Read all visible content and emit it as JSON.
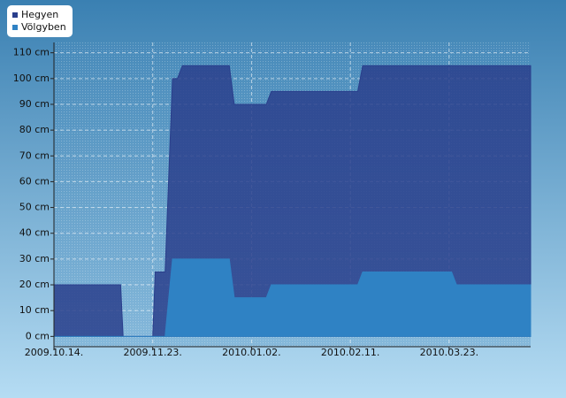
{
  "chart_data": {
    "type": "area",
    "x": [
      "2009-10-14",
      "2009-11-10",
      "2009-11-11",
      "2009-11-23",
      "2009-11-24",
      "2009-11-28",
      "2009-12-01",
      "2009-12-03",
      "2009-12-05",
      "2009-12-24",
      "2009-12-26",
      "2010-01-08",
      "2010-01-10",
      "2010-02-14",
      "2010-02-16",
      "2010-03-24",
      "2010-03-26",
      "2010-04-25"
    ],
    "series": [
      {
        "name": "Hegyen",
        "color": "#2a3f8c",
        "values": [
          20,
          20,
          0,
          0,
          25,
          25,
          100,
          100,
          105,
          105,
          90,
          90,
          95,
          95,
          105,
          105,
          105,
          105
        ]
      },
      {
        "name": "Völgyben",
        "color": "#2f82c4",
        "values": [
          0,
          0,
          0,
          0,
          0,
          0,
          30,
          30,
          30,
          30,
          15,
          15,
          20,
          20,
          25,
          25,
          20,
          20
        ]
      }
    ],
    "xlim": [
      "2009-10-14",
      "2010-04-25"
    ],
    "xticks": [
      {
        "value": "2009-10-14",
        "label": "2009.10.14."
      },
      {
        "value": "2009-11-23",
        "label": "2009.11.23."
      },
      {
        "value": "2010-01-02",
        "label": "2010.01.02."
      },
      {
        "value": "2010-02-11",
        "label": "2010.02.11."
      },
      {
        "value": "2010-03-23",
        "label": "2010.03.23."
      }
    ],
    "ylim": [
      -4,
      114
    ],
    "yticks": [
      {
        "value": 0,
        "label": "0 cm"
      },
      {
        "value": 10,
        "label": "10 cm"
      },
      {
        "value": 20,
        "label": "20 cm"
      },
      {
        "value": 30,
        "label": "30 cm"
      },
      {
        "value": 40,
        "label": "40 cm"
      },
      {
        "value": 50,
        "label": "50 cm"
      },
      {
        "value": 60,
        "label": "60 cm"
      },
      {
        "value": 70,
        "label": "70 cm"
      },
      {
        "value": 80,
        "label": "80 cm"
      },
      {
        "value": 90,
        "label": "90 cm"
      },
      {
        "value": 100,
        "label": "100 cm"
      },
      {
        "value": 110,
        "label": "110 cm"
      }
    ],
    "grid": true,
    "legend": "top-left"
  }
}
